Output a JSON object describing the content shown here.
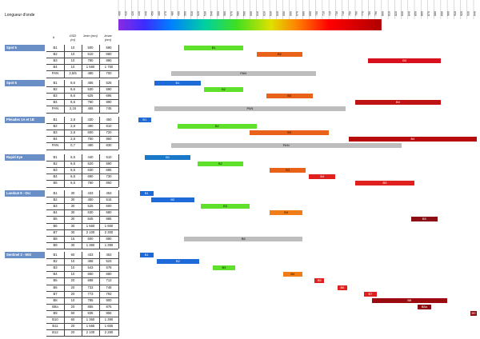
{
  "title": "Longueur d'onde",
  "scale": {
    "min": 400,
    "max": 940,
    "step": 10
  },
  "headers": {
    "band": "#",
    "gsd": "GSD (m)",
    "lmin": "λmin (nm)",
    "lmax": "λmax (nm)"
  },
  "chart_data": {
    "type": "range-bar",
    "x_unit": "nm",
    "x_range": [
      400,
      940
    ],
    "satellites": [
      {
        "name": "Spot 5",
        "bands": [
          {
            "band": "B1",
            "gsd": "10",
            "lmin": "500",
            "lmax": "590",
            "color": "#5fe02a"
          },
          {
            "band": "B2",
            "gsd": "10",
            "lmin": "610",
            "lmax": "680",
            "color": "#e8621a"
          },
          {
            "band": "B3",
            "gsd": "10",
            "lmin": "780",
            "lmax": "890",
            "color": "#d8101e"
          },
          {
            "band": "B4",
            "gsd": "10",
            "lmin": "1 580",
            "lmax": "1 750",
            "color": null
          },
          {
            "band": "PAN",
            "gsd": "2,5/5",
            "lmin": "480",
            "lmax": "700",
            "color": "#bdbdbd"
          }
        ]
      },
      {
        "name": "Spot 6",
        "bands": [
          {
            "band": "B1",
            "gsd": "8,6",
            "lmin": "455",
            "lmax": "525",
            "color": "#1e6ad8"
          },
          {
            "band": "B2",
            "gsd": "8,6",
            "lmin": "530",
            "lmax": "590",
            "color": "#5fe02a"
          },
          {
            "band": "B3",
            "gsd": "8,6",
            "lmin": "625",
            "lmax": "695",
            "color": "#e8621a"
          },
          {
            "band": "B4",
            "gsd": "8,6",
            "lmin": "760",
            "lmax": "890",
            "color": "#c01414"
          },
          {
            "band": "PAN",
            "gsd": "2,15",
            "lmin": "455",
            "lmax": "745",
            "color": "#bdbdbd"
          }
        ]
      },
      {
        "name": "Pleiades 1A et 1B",
        "bands": [
          {
            "band": "B1",
            "gsd": "2,8",
            "lmin": "430",
            "lmax": "450",
            "color": "#1e6ad8"
          },
          {
            "band": "B2",
            "gsd": "2,8",
            "lmin": "490",
            "lmax": "610",
            "color": "#5fe02a"
          },
          {
            "band": "B3",
            "gsd": "2,8",
            "lmin": "600",
            "lmax": "720",
            "color": "#e8621a"
          },
          {
            "band": "B4",
            "gsd": "2,8",
            "lmin": "750",
            "lmax": "950",
            "color": "#b80c0c"
          },
          {
            "band": "PAN",
            "gsd": "0,7",
            "lmin": "480",
            "lmax": "830",
            "color": "#bdbdbd"
          }
        ]
      },
      {
        "name": "Rapid Eye",
        "bands": [
          {
            "band": "B1",
            "gsd": "6,5",
            "lmin": "440",
            "lmax": "510",
            "color": "#1a78c8"
          },
          {
            "band": "B2",
            "gsd": "6,5",
            "lmin": "520",
            "lmax": "590",
            "color": "#5fe02a"
          },
          {
            "band": "B3",
            "gsd": "6,5",
            "lmin": "630",
            "lmax": "685",
            "color": "#e8621a"
          },
          {
            "band": "B4",
            "gsd": "6,5",
            "lmin": "690",
            "lmax": "730",
            "color": "#e0201e"
          },
          {
            "band": "B5",
            "gsd": "6,5",
            "lmin": "760",
            "lmax": "850",
            "color": "#e0201e"
          }
        ]
      },
      {
        "name": "Landsat 8 - OLI",
        "bands": [
          {
            "band": "B1",
            "gsd": "30",
            "lmin": "433",
            "lmax": "453",
            "color": "#1e6ad8"
          },
          {
            "band": "B2",
            "gsd": "30",
            "lmin": "450",
            "lmax": "515",
            "color": "#1e6ad8"
          },
          {
            "band": "B3",
            "gsd": "30",
            "lmin": "525",
            "lmax": "600",
            "color": "#5fe02a"
          },
          {
            "band": "B4",
            "gsd": "30",
            "lmin": "630",
            "lmax": "680",
            "color": "#f07d18"
          },
          {
            "band": "B5",
            "gsd": "30",
            "lmin": "845",
            "lmax": "885",
            "color": "#8c0e14"
          },
          {
            "band": "B6",
            "gsd": "30",
            "lmin": "1 560",
            "lmax": "1 660",
            "color": null
          },
          {
            "band": "B7",
            "gsd": "30",
            "lmin": "2 100",
            "lmax": "2 300",
            "color": null
          },
          {
            "band": "B8",
            "gsd": "15",
            "lmin": "500",
            "lmax": "680",
            "color": "#bdbdbd"
          },
          {
            "band": "B9",
            "gsd": "30",
            "lmin": "1 360",
            "lmax": "1 390",
            "color": null
          }
        ]
      },
      {
        "name": "Sentinel 2 - MSI",
        "bands": [
          {
            "band": "B1",
            "gsd": "60",
            "lmin": "433",
            "lmax": "453",
            "color": "#1e6ad8"
          },
          {
            "band": "B2",
            "gsd": "10",
            "lmin": "458",
            "lmax": "523",
            "color": "#1e6ad8"
          },
          {
            "band": "B3",
            "gsd": "10",
            "lmin": "543",
            "lmax": "578",
            "color": "#5fe02a"
          },
          {
            "band": "B4",
            "gsd": "10",
            "lmin": "650",
            "lmax": "680",
            "color": "#f07d18"
          },
          {
            "band": "B5",
            "gsd": "20",
            "lmin": "698",
            "lmax": "713",
            "color": "#e0201e"
          },
          {
            "band": "B6",
            "gsd": "20",
            "lmin": "733",
            "lmax": "748",
            "color": "#e0201e"
          },
          {
            "band": "B7",
            "gsd": "20",
            "lmin": "773",
            "lmax": "793",
            "color": "#e0201e"
          },
          {
            "band": "B8",
            "gsd": "10",
            "lmin": "785",
            "lmax": "900",
            "color": "#9a0c10"
          },
          {
            "band": "B8a",
            "gsd": "20",
            "lmin": "855",
            "lmax": "875",
            "color": "#8c0e14"
          },
          {
            "band": "B9",
            "gsd": "60",
            "lmin": "935",
            "lmax": "955",
            "color": "#8c0e14"
          },
          {
            "band": "B10",
            "gsd": "60",
            "lmin": "1 360",
            "lmax": "1 390",
            "color": null
          },
          {
            "band": "B11",
            "gsd": "20",
            "lmin": "1 565",
            "lmax": "1 655",
            "color": null
          },
          {
            "band": "B12",
            "gsd": "20",
            "lmin": "2 100",
            "lmax": "2 280",
            "color": null
          }
        ]
      }
    ]
  }
}
